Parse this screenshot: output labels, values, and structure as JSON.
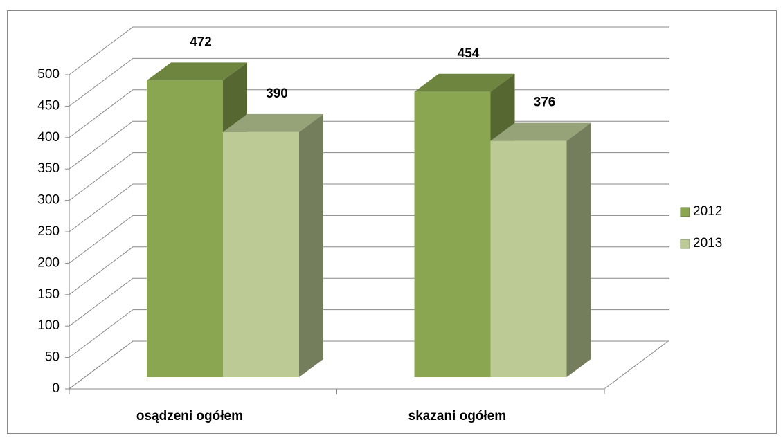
{
  "chart_data": {
    "type": "bar",
    "categories": [
      "osądzeni ogółem",
      "skazani ogółem"
    ],
    "series": [
      {
        "name": "2012",
        "color": "#8aa650",
        "values": [
          472,
          454
        ]
      },
      {
        "name": "2013",
        "color": "#bccb95",
        "values": [
          390,
          376
        ]
      }
    ],
    "ylim": [
      0,
      500
    ],
    "yticks": [
      0,
      50,
      100,
      150,
      200,
      250,
      300,
      350,
      400,
      450,
      500
    ],
    "grid": true,
    "legend": "right"
  }
}
